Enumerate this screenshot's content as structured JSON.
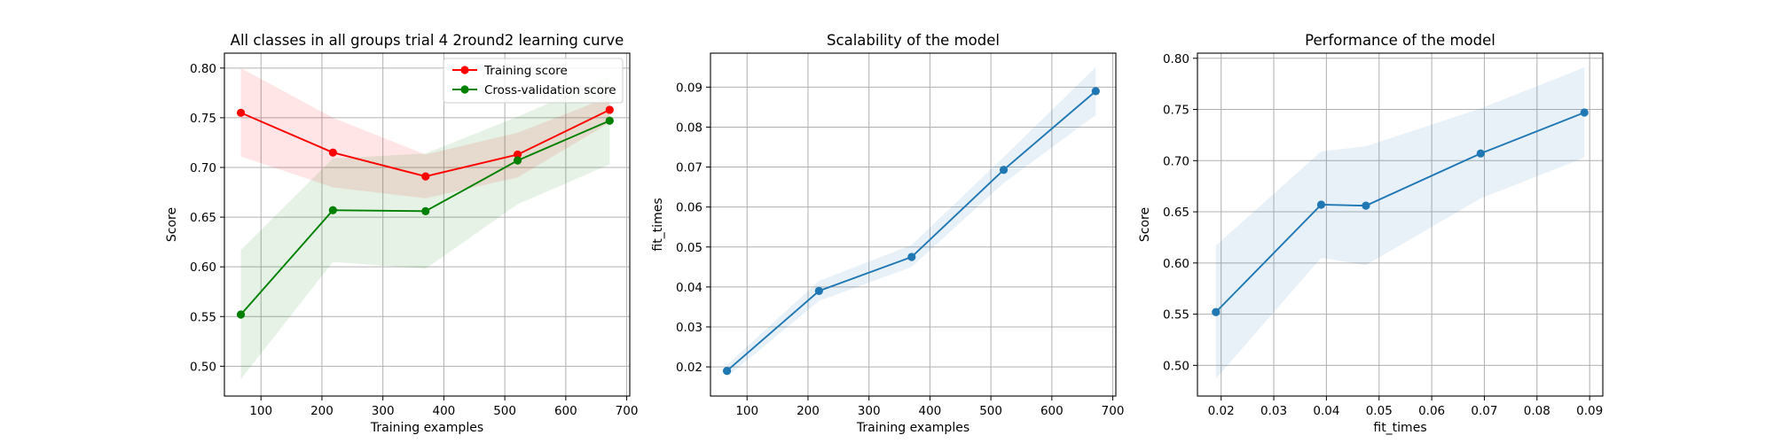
{
  "figure": {
    "background": "#ffffff"
  },
  "chart_data": [
    {
      "type": "line",
      "title": "All classes in all groups trial 4 2round2 learning curve",
      "xlabel": "Training examples",
      "ylabel": "Score",
      "xlim": [
        40,
        705
      ],
      "ylim": [
        0.47,
        0.815
      ],
      "xticks": [
        100,
        200,
        300,
        400,
        500,
        600,
        700
      ],
      "yticks": [
        0.5,
        0.55,
        0.6,
        0.65,
        0.7,
        0.75,
        0.8
      ],
      "grid": true,
      "legend": "top-right",
      "x": [
        67,
        218,
        370,
        521,
        672
      ],
      "series": [
        {
          "name": "Training score",
          "color": "#ff0000",
          "values": [
            0.755,
            0.715,
            0.691,
            0.713,
            0.758
          ],
          "band_lower": [
            0.711,
            0.68,
            0.669,
            0.69,
            0.745
          ],
          "band_upper": [
            0.8,
            0.75,
            0.713,
            0.735,
            0.771
          ]
        },
        {
          "name": "Cross-validation score",
          "color": "#008000",
          "values": [
            0.552,
            0.657,
            0.656,
            0.707,
            0.747
          ],
          "band_lower": [
            0.487,
            0.605,
            0.598,
            0.663,
            0.703
          ],
          "band_upper": [
            0.617,
            0.709,
            0.714,
            0.751,
            0.791
          ]
        }
      ]
    },
    {
      "type": "line",
      "title": "Scalability of the model",
      "xlabel": "Training examples",
      "ylabel": "fit_times",
      "xlim": [
        40,
        705
      ],
      "ylim": [
        0.0127,
        0.0985
      ],
      "xticks": [
        100,
        200,
        300,
        400,
        500,
        600,
        700
      ],
      "yticks": [
        0.02,
        0.03,
        0.04,
        0.05,
        0.06,
        0.07,
        0.08,
        0.09
      ],
      "grid": true,
      "x": [
        67,
        218,
        370,
        521,
        672
      ],
      "series": [
        {
          "color": "#1f77b4",
          "values": [
            0.019,
            0.039,
            0.0475,
            0.0693,
            0.089
          ],
          "band_lower": [
            0.0175,
            0.0365,
            0.045,
            0.066,
            0.083
          ],
          "band_upper": [
            0.0205,
            0.0415,
            0.0505,
            0.0725,
            0.095
          ]
        }
      ]
    },
    {
      "type": "line",
      "title": "Performance of the model",
      "xlabel": "fit_times",
      "ylabel": "Score",
      "xlim": [
        0.0155,
        0.0925
      ],
      "ylim": [
        0.47,
        0.805
      ],
      "xticks": [
        0.02,
        0.03,
        0.04,
        0.05,
        0.06,
        0.07,
        0.08,
        0.09
      ],
      "yticks": [
        0.5,
        0.55,
        0.6,
        0.65,
        0.7,
        0.75,
        0.8
      ],
      "grid": true,
      "x": [
        0.019,
        0.039,
        0.0475,
        0.0693,
        0.089
      ],
      "series": [
        {
          "color": "#1f77b4",
          "values": [
            0.552,
            0.657,
            0.656,
            0.707,
            0.747
          ],
          "band_lower": [
            0.487,
            0.605,
            0.598,
            0.663,
            0.703
          ],
          "band_upper": [
            0.617,
            0.709,
            0.714,
            0.751,
            0.791
          ]
        }
      ]
    }
  ]
}
